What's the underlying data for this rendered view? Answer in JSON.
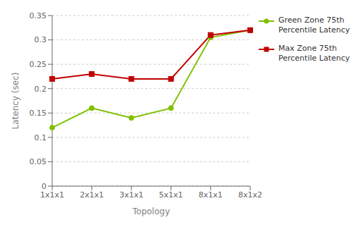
{
  "chart_data": {
    "type": "line",
    "categories": [
      "1x1x1",
      "2x1x1",
      "3x1x1",
      "5x1x1",
      "8x1x1",
      "8x1x2"
    ],
    "series": [
      {
        "name": "Green Zone 75th\nPercentile Latency",
        "color": "#80C000",
        "marker": "circle",
        "values": [
          0.12,
          0.16,
          0.14,
          0.16,
          0.305,
          0.32
        ]
      },
      {
        "name": "Max Zone 75th\nPercentile Latency",
        "color": "#C00000",
        "marker": "square",
        "values": [
          0.22,
          0.23,
          0.22,
          0.22,
          0.31,
          0.32
        ]
      }
    ],
    "xlabel": "Topology",
    "ylabel": "Latency (sec)",
    "ylim": [
      0,
      0.35
    ],
    "yticks": [
      0,
      0.05,
      0.1,
      0.15,
      0.2,
      0.25,
      0.3,
      0.35
    ],
    "grid": true,
    "legend": "right"
  }
}
